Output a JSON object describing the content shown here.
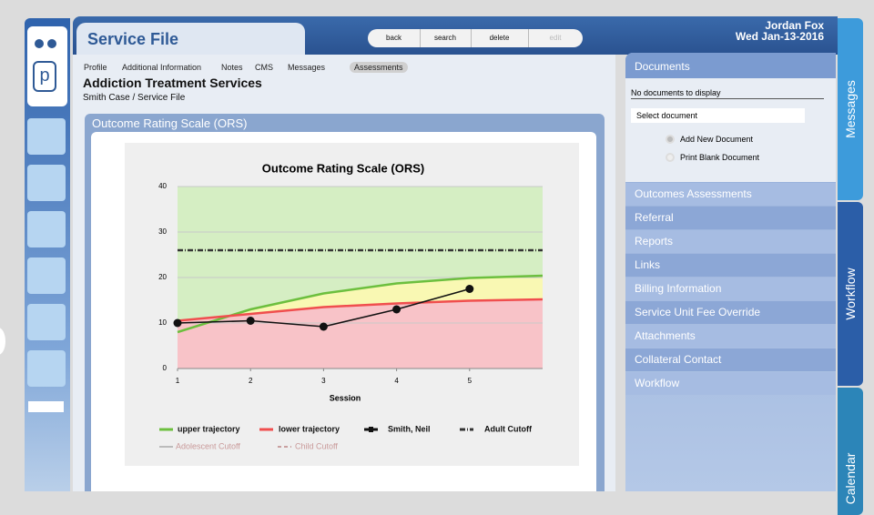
{
  "header": {
    "user": "Jordan Fox",
    "date": "Wed Jan-13-2016"
  },
  "service_file": {
    "title": "Service File",
    "buttons": [
      "back",
      "search",
      "delete",
      "edit"
    ]
  },
  "nav_tabs": [
    "Profile",
    "Additional Information",
    "Notes",
    "CMS",
    "Messages",
    "Assessments"
  ],
  "heading": "Addiction Treatment Services",
  "breadcrumb": "Smith Case / Service File",
  "section_title": "Outcome Rating Scale (ORS)",
  "documents": {
    "title": "Documents",
    "empty": "No documents to display",
    "select": "Select document",
    "options": [
      "Add New Document",
      "Print Blank Document"
    ]
  },
  "menu": [
    "Outcomes Assessments",
    "Referral",
    "Reports",
    "Links",
    "Billing Information",
    "Service Unit Fee Override",
    "Attachments",
    "Collateral Contact",
    "Workflow"
  ],
  "side_tabs": [
    "Messages",
    "Workflow",
    "Calendar"
  ],
  "chart_data": {
    "type": "line",
    "title": "Outcome Rating Scale (ORS)",
    "x_label": "Session",
    "x": [
      1,
      2,
      3,
      4,
      5,
      6
    ],
    "xlim": [
      1,
      6
    ],
    "xticks": [
      1,
      2,
      3,
      4,
      5
    ],
    "ylim": [
      0,
      40
    ],
    "yticks": [
      0,
      10,
      20,
      30,
      40
    ],
    "grid": true,
    "band_colors": {
      "above": "#d5eec3",
      "between": "#f9f8b3",
      "below": "#f8c3c8"
    },
    "series": [
      {
        "name": "upper trajectory",
        "color": "#6cbf3e",
        "values": [
          8,
          13,
          16.5,
          18.7,
          19.9,
          20.4
        ]
      },
      {
        "name": "lower trajectory",
        "color": "#f04e4e",
        "values": [
          10.5,
          12,
          13.5,
          14.3,
          14.9,
          15.2
        ]
      },
      {
        "name": "Smith, Neil",
        "color": "#111111",
        "markers": true,
        "values": [
          10,
          10.5,
          9.2,
          13,
          17.5,
          null
        ]
      },
      {
        "name": "Adult Cutoff",
        "color": "#333333",
        "dash": "dashdot",
        "values": [
          26,
          26,
          26,
          26,
          26,
          26
        ]
      },
      {
        "name": "Adolescent Cutoff",
        "color": "#bbbbbb",
        "visible": false,
        "values": [
          null,
          null,
          null,
          null,
          null,
          null
        ]
      },
      {
        "name": "Child Cutoff",
        "color": "#c9a0a0",
        "dash": "dash",
        "visible": false,
        "values": [
          null,
          null,
          null,
          null,
          null,
          null
        ]
      }
    ]
  }
}
